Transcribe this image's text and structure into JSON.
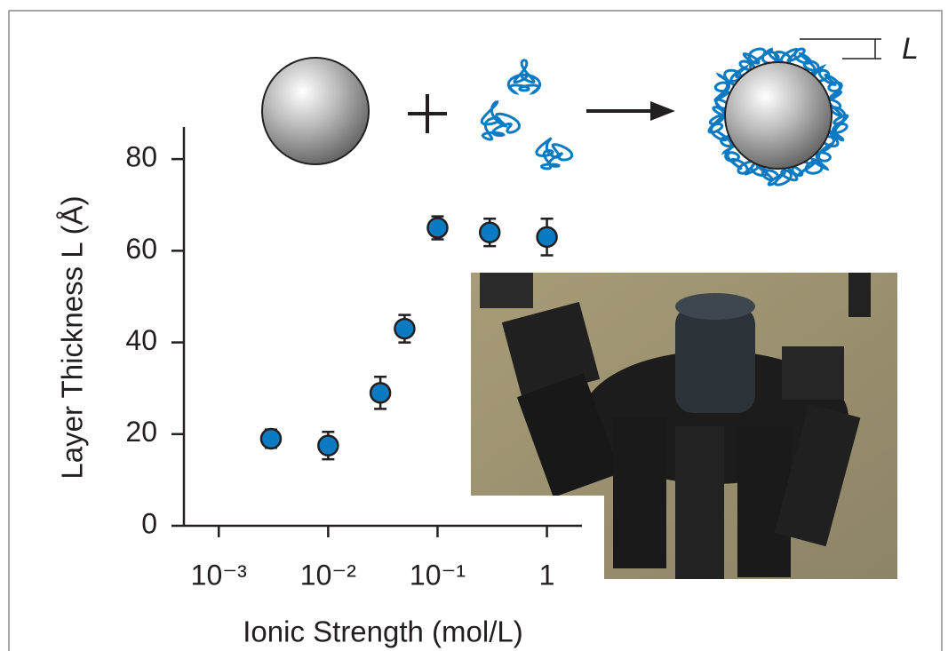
{
  "chart_data": {
    "type": "scatter",
    "x_label": "Ionic Strength (mol/L)",
    "y_label": "Layer Thickness L (Å)",
    "annotation": "L",
    "x_scale": "log",
    "xlim": [
      0.00048,
      2.09
    ],
    "ylim": [
      0,
      87
    ],
    "xticks": [
      {
        "value": 0.001,
        "label": "10⁻³"
      },
      {
        "value": 0.01,
        "label": "10⁻²"
      },
      {
        "value": 0.1,
        "label": "10⁻¹"
      },
      1
    ],
    "yticks": [
      0,
      20,
      40,
      60,
      80
    ],
    "grid": false,
    "series": [
      {
        "color": "#0a7bc2",
        "x": [
          0.003,
          0.01,
          0.03,
          0.05,
          0.1,
          0.3,
          1
        ],
        "values": [
          19,
          17.5,
          29,
          43,
          65,
          64,
          63
        ],
        "errors": [
          2,
          3,
          3.5,
          3,
          2.5,
          3,
          4
        ]
      }
    ]
  }
}
